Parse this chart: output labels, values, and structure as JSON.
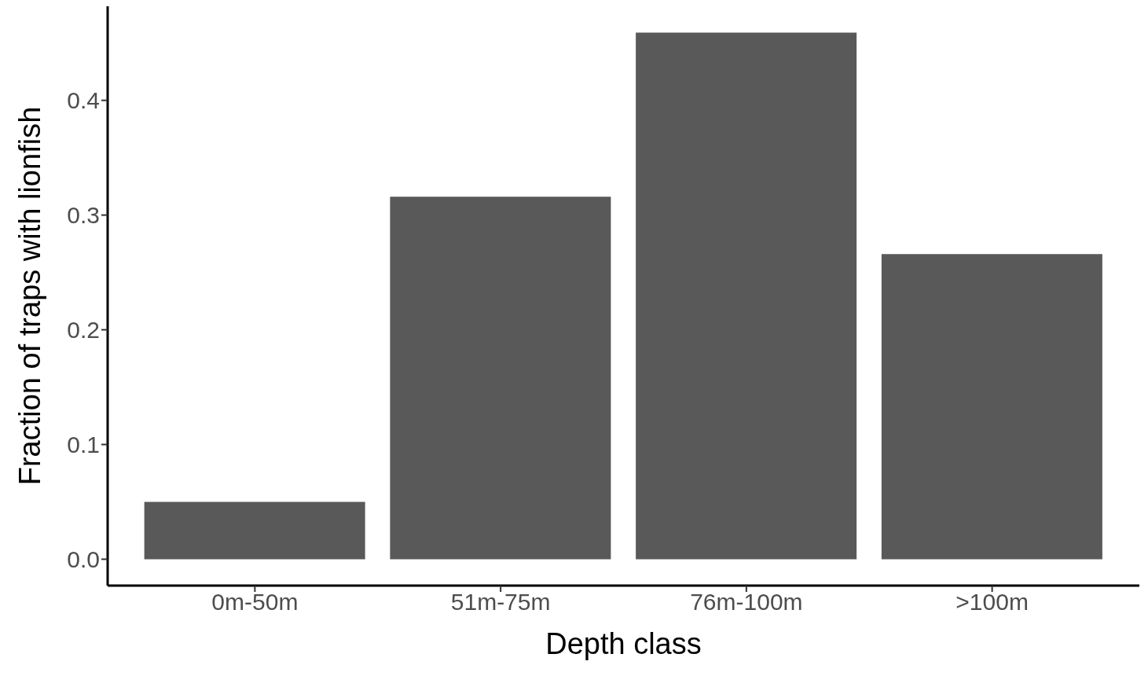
{
  "chart_data": {
    "type": "bar",
    "xlabel": "Depth class",
    "ylabel": "Fraction of traps with lionfish",
    "categories": [
      "0m-50m",
      "51m-75m",
      "76m-100m",
      ">100m"
    ],
    "values": [
      0.05,
      0.316,
      0.459,
      0.266
    ],
    "color": "#595959",
    "ylim": [
      -0.023,
      0.482
    ],
    "yticks": [
      {
        "value": 0,
        "label": "0.0"
      },
      {
        "value": 0.1,
        "label": "0.1"
      },
      {
        "value": 0.2,
        "label": "0.2"
      },
      {
        "value": 0.3,
        "label": "0.3"
      },
      {
        "value": 0.4,
        "label": "0.4"
      }
    ],
    "grid": false,
    "legend": false
  }
}
